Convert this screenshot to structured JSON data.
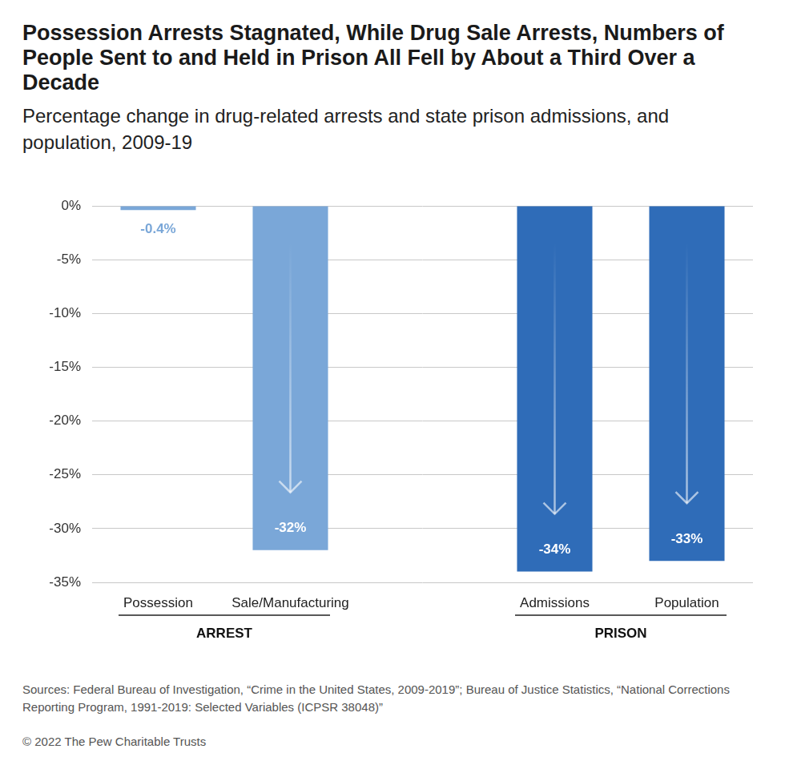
{
  "chart_data": {
    "type": "bar",
    "title": "Possession Arrests Stagnated, While Drug Sale Arrests, Numbers of People Sent to and Held in Prison All Fell by About a Third Over a Decade",
    "subtitle": "Percentage change in drug-related arrests and state prison admissions, and population, 2009-19",
    "categories": [
      "Possession",
      "Sale/Manufacturing",
      "Admissions",
      "Population"
    ],
    "values": [
      -0.4,
      -32,
      -34,
      -33
    ],
    "value_labels": [
      "-0.4%",
      "-32%",
      "-34%",
      "-33%"
    ],
    "colors": [
      "#7aa7d8",
      "#7aa7d8",
      "#2f6cb8",
      "#2f6cb8"
    ],
    "groups": [
      {
        "name": "ARREST",
        "categories": [
          "Possession",
          "Sale/Manufacturing"
        ]
      },
      {
        "name": "PRISON",
        "categories": [
          "Admissions",
          "Population"
        ]
      }
    ],
    "ylim": [
      -35,
      0
    ],
    "yticks": [
      {
        "value": -35,
        "label": "-35%"
      },
      {
        "value": -30,
        "label": "-30%"
      },
      {
        "value": -25,
        "label": "-25%"
      },
      {
        "value": -20,
        "label": "-20%"
      },
      {
        "value": -15,
        "label": "-15%"
      },
      {
        "value": -10,
        "label": "-10%"
      },
      {
        "value": -5,
        "label": "-5%"
      },
      {
        "value": 0,
        "label": "0%"
      }
    ],
    "grid": true,
    "data_labels": true,
    "source": "Sources: Federal Bureau of Investigation, “Crime in the United States, 2009-2019”; Bureau of Justice Statistics, “National Corrections Reporting Program, 1991-2019: Selected Variables (ICPSR 38048)”",
    "credit": "© 2022 The Pew Charitable Trusts"
  }
}
